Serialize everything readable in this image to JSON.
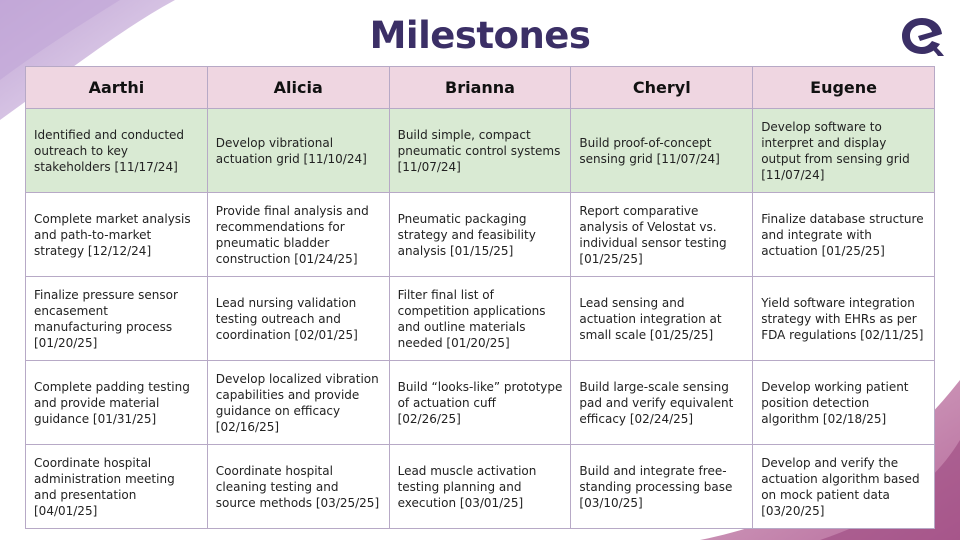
{
  "title": "Milestones",
  "colors": {
    "title": "#3b2f66",
    "header_bg": "#efd6e1",
    "highlight_row": "#d9ead3",
    "accent": "#6b3f8f"
  },
  "logo": {
    "icon": "brand-logo-icon"
  },
  "table": {
    "headers": [
      "Aarthi",
      "Alicia",
      "Brianna",
      "Cheryl",
      "Eugene"
    ],
    "rows": [
      [
        "Identified and conducted outreach to key stakeholders [11/17/24]",
        "Develop vibrational actuation grid [11/10/24]",
        "Build simple, compact pneumatic control systems [11/07/24]",
        "Build proof-of-concept sensing grid [11/07/24]",
        "Develop software to interpret and display output from sensing grid [11/07/24]"
      ],
      [
        "Complete market analysis and path-to-market strategy [12/12/24]",
        "Provide final analysis and recommendations for pneumatic bladder construction [01/24/25]",
        "Pneumatic packaging strategy and feasibility analysis [01/15/25]",
        "Report comparative analysis of Velostat vs. individual sensor testing [01/25/25]",
        "Finalize database structure and integrate with actuation [01/25/25]"
      ],
      [
        "Finalize pressure sensor encasement manufacturing process [01/20/25]",
        "Lead nursing validation testing outreach and coordination [02/01/25]",
        "Filter final list of competition applications and outline materials needed [01/20/25]",
        "Lead sensing and actuation integration at small scale [01/25/25]",
        "Yield software integration strategy with EHRs as per FDA regulations [02/11/25]"
      ],
      [
        "Complete padding testing and provide material guidance [01/31/25]",
        "Develop localized vibration capabilities and provide guidance on efficacy [02/16/25]",
        "Build “looks-like” prototype of actuation cuff [02/26/25]",
        "Build large-scale sensing pad and verify equivalent efficacy [02/24/25]",
        "Develop working patient position detection algorithm [02/18/25]"
      ],
      [
        "Coordinate hospital administration meeting and presentation [04/01/25]",
        "Coordinate hospital cleaning testing and source methods [03/25/25]",
        "Lead muscle activation testing planning and execution [03/01/25]",
        "Build and integrate free-standing processing base [03/10/25]",
        "Develop and verify the actuation algorithm based on mock patient data [03/20/25]"
      ]
    ]
  }
}
